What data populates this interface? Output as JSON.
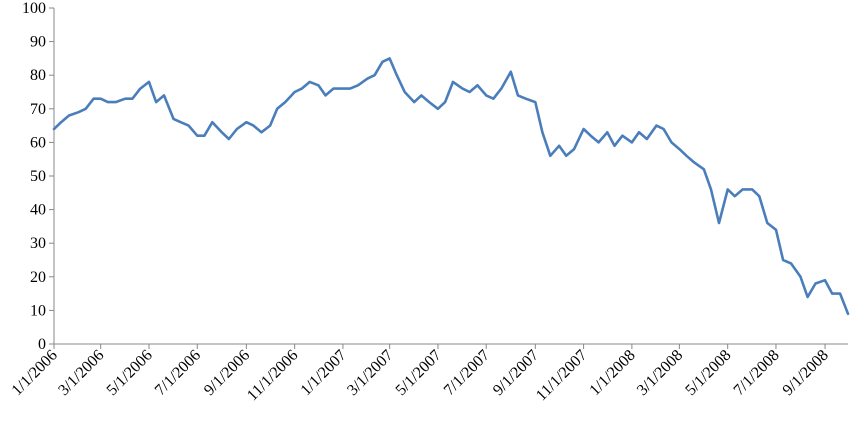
{
  "chart_data": {
    "type": "line",
    "title": "",
    "xlabel": "",
    "ylabel": "",
    "ylim": [
      0,
      100
    ],
    "yticks": [
      0,
      10,
      20,
      30,
      40,
      50,
      60,
      70,
      80,
      90,
      100
    ],
    "xlim": [
      "2006-01-01",
      "2008-09-30"
    ],
    "xtick_labels": [
      "1/1/2006",
      "3/1/2006",
      "5/1/2006",
      "7/1/2006",
      "9/1/2006",
      "11/1/2006",
      "1/1/2007",
      "3/1/2007",
      "5/1/2007",
      "7/1/2007",
      "9/1/2007",
      "11/1/2007",
      "1/1/2008",
      "3/1/2008",
      "5/1/2008",
      "7/1/2008",
      "9/1/2008"
    ],
    "grid": false,
    "legend": "none",
    "series_color": "#4a7ebb",
    "series": [
      {
        "x": [
          "2006-01-01",
          "2006-01-10",
          "2006-01-20",
          "2006-02-01",
          "2006-02-10",
          "2006-02-20",
          "2006-03-01",
          "2006-03-10",
          "2006-03-20",
          "2006-04-01",
          "2006-04-10",
          "2006-04-20",
          "2006-05-01",
          "2006-05-10",
          "2006-05-20",
          "2006-06-01",
          "2006-06-10",
          "2006-06-20",
          "2006-07-01",
          "2006-07-10",
          "2006-07-20",
          "2006-08-01",
          "2006-08-10",
          "2006-08-20",
          "2006-09-01",
          "2006-09-10",
          "2006-09-20",
          "2006-10-01",
          "2006-10-10",
          "2006-10-20",
          "2006-11-01",
          "2006-11-10",
          "2006-11-20",
          "2006-12-01",
          "2006-12-10",
          "2006-12-20",
          "2007-01-01",
          "2007-01-10",
          "2007-01-20",
          "2007-02-01",
          "2007-02-10",
          "2007-02-20",
          "2007-03-01",
          "2007-03-10",
          "2007-03-20",
          "2007-04-01",
          "2007-04-10",
          "2007-04-20",
          "2007-05-01",
          "2007-05-10",
          "2007-05-20",
          "2007-06-01",
          "2007-06-10",
          "2007-06-20",
          "2007-07-01",
          "2007-07-10",
          "2007-07-20",
          "2007-08-01",
          "2007-08-10",
          "2007-08-20",
          "2007-09-01",
          "2007-09-10",
          "2007-09-20",
          "2007-10-01",
          "2007-10-10",
          "2007-10-20",
          "2007-11-01",
          "2007-11-10",
          "2007-11-20",
          "2007-12-01",
          "2007-12-10",
          "2007-12-20",
          "2008-01-01",
          "2008-01-10",
          "2008-01-20",
          "2008-02-01",
          "2008-02-10",
          "2008-02-20",
          "2008-03-01",
          "2008-03-10",
          "2008-03-20",
          "2008-04-01",
          "2008-04-10",
          "2008-04-20",
          "2008-05-01",
          "2008-05-10",
          "2008-05-20",
          "2008-06-01",
          "2008-06-10",
          "2008-06-20",
          "2008-07-01",
          "2008-07-10",
          "2008-07-20",
          "2008-08-01",
          "2008-08-10",
          "2008-08-20",
          "2008-09-01",
          "2008-09-10",
          "2008-09-20",
          "2008-09-30"
        ],
        "values": [
          64,
          66,
          68,
          69,
          70,
          73,
          73,
          72,
          72,
          73,
          73,
          76,
          78,
          72,
          74,
          67,
          66,
          65,
          62,
          62,
          66,
          63,
          61,
          64,
          66,
          65,
          63,
          65,
          70,
          72,
          75,
          76,
          78,
          77,
          74,
          76,
          76,
          76,
          77,
          79,
          80,
          84,
          85,
          80,
          75,
          72,
          74,
          72,
          70,
          72,
          78,
          76,
          75,
          77,
          74,
          73,
          76,
          81,
          74,
          73,
          72,
          63,
          56,
          59,
          56,
          58,
          64,
          62,
          60,
          63,
          59,
          62,
          60,
          63,
          61,
          65,
          64,
          60,
          58,
          56,
          54,
          52,
          46,
          36,
          46,
          44,
          46,
          46,
          44,
          36,
          34,
          25,
          24,
          20,
          14,
          18,
          19,
          15,
          15,
          9
        ]
      }
    ]
  }
}
